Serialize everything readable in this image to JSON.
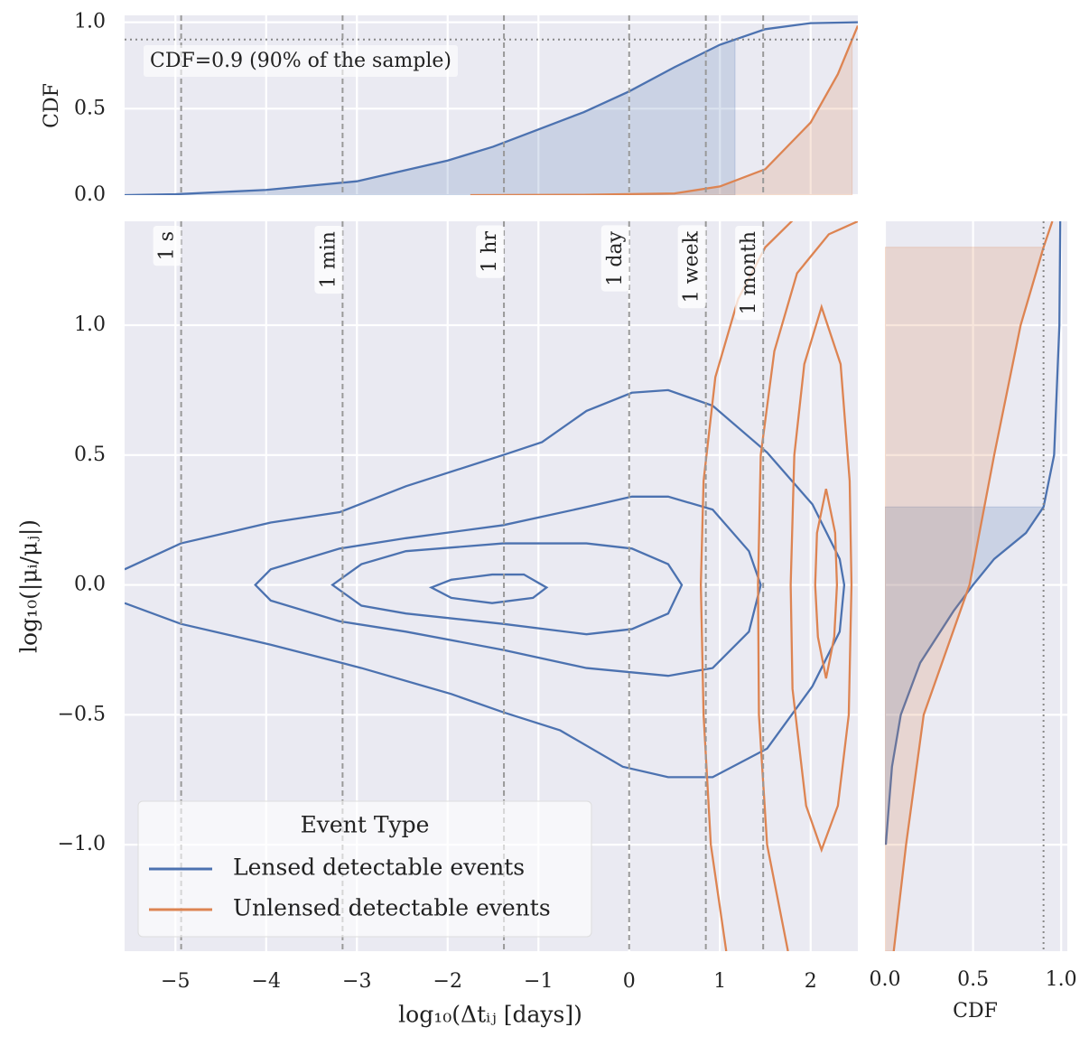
{
  "chart_data": {
    "type": "jointplot",
    "xlabel": "log₁₀(Δtᵢⱼ [days])",
    "ylabel": "log₁₀(|μᵢ/μⱼ|)",
    "xlim": [
      -5.56,
      2.52
    ],
    "ylim": [
      -1.41,
      1.4
    ],
    "xticks": [
      {
        "value": -5,
        "label": "−5"
      },
      {
        "value": -4,
        "label": "−4"
      },
      {
        "value": -3,
        "label": "−3"
      },
      {
        "value": -2,
        "label": "−2"
      },
      {
        "value": -1,
        "label": "−1"
      },
      0,
      1,
      2
    ],
    "yticks": [
      {
        "value": -1,
        "label": "−1.0"
      },
      {
        "value": -0.5,
        "label": "−0.5"
      },
      {
        "value": 0,
        "label": "0.0"
      },
      {
        "value": 0.5,
        "label": "0.5"
      },
      {
        "value": 1,
        "label": "1.0"
      }
    ],
    "grid": true,
    "legend": {
      "title": "Event Type",
      "loc": "lower left"
    },
    "time_markers": [
      {
        "label": "1 s",
        "value": -4.937
      },
      {
        "label": "1 min",
        "value": -3.158
      },
      {
        "label": "1 hr",
        "value": -1.38
      },
      {
        "label": "1 day",
        "value": 0
      },
      {
        "label": "1 week",
        "value": 0.845
      },
      {
        "label": "1 month",
        "value": 1.477
      }
    ],
    "cdf_threshold": 0.9,
    "annotation": "CDF=0.9 (90% of the sample)",
    "top_cdf": {
      "ylabel": "CDF",
      "ylim": [
        0,
        1.04
      ],
      "yticks": [
        {
          "value": 0,
          "label": "0.0"
        },
        {
          "value": 0.5,
          "label": "0.5"
        },
        {
          "value": 1,
          "label": "1.0"
        }
      ]
    },
    "right_cdf": {
      "xlabel": "CDF",
      "xlim": [
        0,
        1.035
      ],
      "xticks": [
        {
          "value": 0,
          "label": "0.0"
        },
        {
          "value": 0.5,
          "label": "0.5"
        },
        {
          "value": 1,
          "label": "1.0"
        }
      ]
    },
    "series": [
      {
        "name": "Lensed detectable events",
        "color": "#4c72b0",
        "contours": [
          {
            "closed": false,
            "x": [
              -5.56,
              -4.94,
              -3.95,
              -3.19,
              -2.46,
              -1.39,
              -0.96,
              -0.47,
              0.03,
              0.43,
              0.92,
              1.52,
              2.02,
              2.32,
              2.37,
              2.32,
              2.02,
              1.52,
              0.92,
              0.43,
              -0.07,
              -0.76,
              -1.39,
              -1.96,
              -2.95,
              -3.95,
              -4.94,
              -5.56
            ],
            "y": [
              0.06,
              0.16,
              0.24,
              0.28,
              0.38,
              0.5,
              0.55,
              0.67,
              0.74,
              0.75,
              0.69,
              0.51,
              0.31,
              0.1,
              0,
              -0.18,
              -0.39,
              -0.63,
              -0.74,
              -0.74,
              -0.7,
              -0.56,
              -0.49,
              -0.42,
              -0.32,
              -0.23,
              -0.15,
              -0.07
            ]
          },
          {
            "closed": true,
            "x": [
              -4.12,
              -3.95,
              -3.19,
              -2.46,
              -1.39,
              -0.47,
              0.03,
              0.43,
              0.92,
              1.32,
              1.45,
              1.32,
              0.92,
              0.43,
              -0.47,
              -1.39,
              -2.46,
              -3.19,
              -3.95
            ],
            "y": [
              0,
              0.06,
              0.14,
              0.18,
              0.23,
              0.3,
              0.34,
              0.34,
              0.29,
              0.13,
              0,
              -0.18,
              -0.32,
              -0.35,
              -0.32,
              -0.25,
              -0.18,
              -0.14,
              -0.06
            ]
          },
          {
            "closed": true,
            "x": [
              -3.27,
              -2.95,
              -2.46,
              -1.39,
              -0.47,
              0.03,
              0.43,
              0.58,
              0.43,
              0.03,
              -0.47,
              -1.39,
              -2.46,
              -2.95
            ],
            "y": [
              0,
              0.08,
              0.13,
              0.16,
              0.16,
              0.14,
              0.08,
              0,
              -0.11,
              -0.17,
              -0.19,
              -0.15,
              -0.11,
              -0.08
            ]
          },
          {
            "closed": true,
            "x": [
              -2.18,
              -1.96,
              -1.51,
              -1.16,
              -0.91,
              -1.06,
              -1.51,
              -1.96
            ],
            "y": [
              -0.01,
              0.02,
              0.04,
              0.04,
              -0.01,
              -0.05,
              -0.07,
              -0.05
            ]
          }
        ],
        "top_cdf": {
          "x": [
            -5.56,
            -5,
            -4,
            -3,
            -2,
            -1.5,
            -1,
            -0.5,
            0,
            0.5,
            1,
            1.5,
            2,
            2.52
          ],
          "values": [
            0,
            0.005,
            0.03,
            0.08,
            0.2,
            0.28,
            0.38,
            0.48,
            0.6,
            0.74,
            0.87,
            0.96,
            0.995,
            1
          ]
        },
        "right_cdf": {
          "y": [
            -1,
            -0.7,
            -0.5,
            -0.3,
            -0.1,
            0,
            0.1,
            0.2,
            0.3,
            0.5,
            1,
            1.4
          ],
          "values": [
            0.005,
            0.04,
            0.09,
            0.2,
            0.39,
            0.5,
            0.62,
            0.8,
            0.9,
            0.96,
            0.99,
            0.995
          ]
        }
      },
      {
        "name": "Unlensed detectable events",
        "color": "#dd8452",
        "contours": [
          {
            "closed": false,
            "x": [
              1.07,
              0.9,
              0.82,
              0.79,
              0.82,
              0.95,
              1.2,
              1.5,
              1.82
            ],
            "y": [
              -1.41,
              -1,
              -0.5,
              0,
              0.4,
              0.8,
              1.1,
              1.3,
              1.41
            ]
          },
          {
            "closed": false,
            "x": [
              1.75,
              1.52,
              1.43,
              1.42,
              1.45,
              1.6,
              1.85,
              2.2,
              2.52
            ],
            "y": [
              -1.41,
              -1,
              -0.5,
              0,
              0.5,
              0.9,
              1.2,
              1.35,
              1.4
            ]
          },
          {
            "closed": true,
            "x": [
              2.12,
              2.33,
              2.43,
              2.45,
              2.42,
              2.3,
              2.12,
              1.95,
              1.8,
              1.78,
              1.82,
              1.93
            ],
            "y": [
              1.07,
              0.85,
              0.4,
              0,
              -0.5,
              -0.85,
              -1.02,
              -0.85,
              -0.4,
              0,
              0.5,
              0.85
            ]
          },
          {
            "closed": true,
            "x": [
              2.17,
              2.27,
              2.29,
              2.26,
              2.17,
              2.08,
              2.05,
              2.07
            ],
            "y": [
              0.37,
              0.2,
              0,
              -0.2,
              -0.36,
              -0.2,
              0,
              0.2
            ]
          }
        ],
        "top_cdf": {
          "x": [
            -1.75,
            -0.5,
            0.5,
            1,
            1.5,
            2,
            2.3,
            2.52
          ],
          "values": [
            0,
            0.002,
            0.01,
            0.05,
            0.15,
            0.42,
            0.7,
            0.98
          ]
        },
        "right_cdf": {
          "y": [
            -1.41,
            -1,
            -0.5,
            0,
            0.5,
            1,
            1.3,
            1.4
          ],
          "values": [
            0.05,
            0.12,
            0.22,
            0.48,
            0.62,
            0.77,
            0.9,
            0.95
          ]
        }
      }
    ]
  }
}
